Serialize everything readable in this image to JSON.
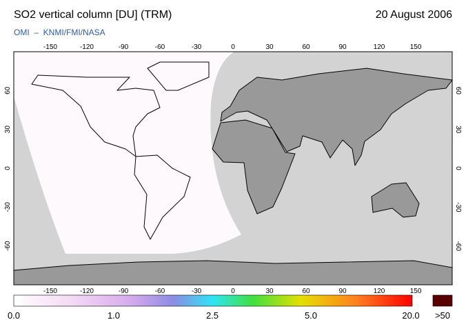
{
  "header": {
    "title": "SO2 vertical column [DU] (TRM)",
    "date": "20 August 2006",
    "source": "OMI  –  KNMI/FMI/NASA"
  },
  "map": {
    "lon_ticks": [
      -150,
      -120,
      -90,
      -60,
      -30,
      0,
      30,
      60,
      90,
      120,
      150
    ],
    "lat_ticks": [
      60,
      30,
      0,
      -30,
      -60
    ]
  },
  "colorbar": {
    "labels": [
      "0.0",
      "1.0",
      "2.5",
      "5.0",
      "20.0",
      ">50"
    ]
  }
}
